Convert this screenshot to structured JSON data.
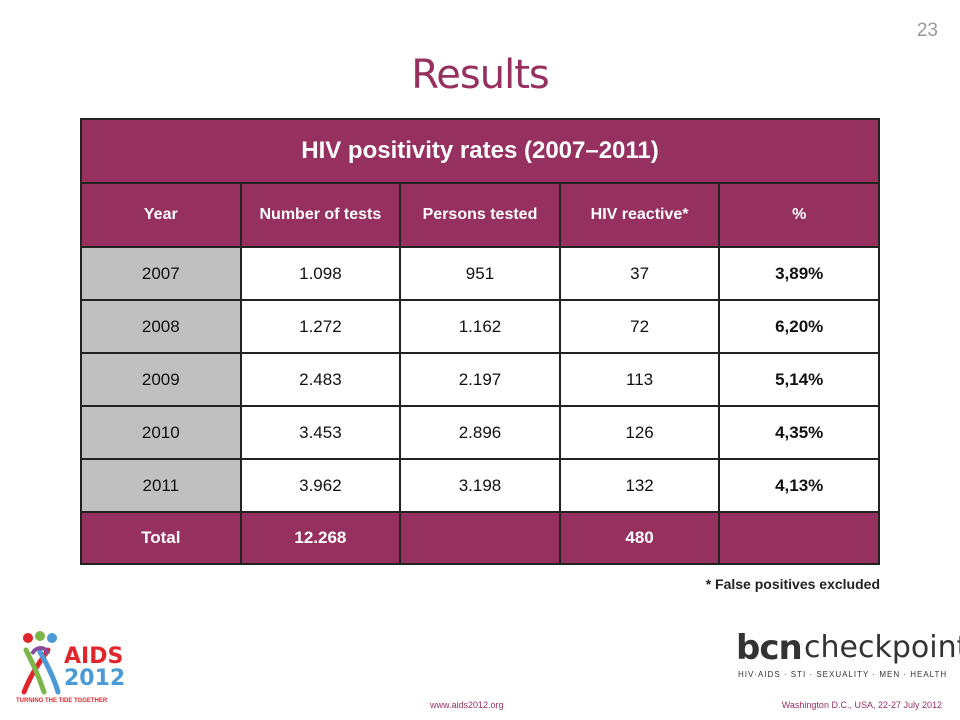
{
  "slide": {
    "number": "23",
    "title": "Results"
  },
  "table": {
    "title": "HIV positivity rates (2007–2011)",
    "columns": [
      "Year",
      "Number of tests",
      "Persons tested",
      "HIV reactive*",
      "%"
    ],
    "rows": [
      [
        "2007",
        "1.098",
        "951",
        "37",
        "3,89%"
      ],
      [
        "2008",
        "1.272",
        "1.162",
        "72",
        "6,20%"
      ],
      [
        "2009",
        "2.483",
        "2.197",
        "113",
        "5,14%"
      ],
      [
        "2010",
        "3.453",
        "2.896",
        "126",
        "4,35%"
      ],
      [
        "2011",
        "3.962",
        "3.198",
        "132",
        "4,13%"
      ]
    ],
    "total": [
      "Total",
      "12.268",
      "",
      "480",
      ""
    ]
  },
  "footnote": "* False positives excluded",
  "footer": {
    "url": "www.aids2012.org",
    "event": "Washington D.C., USA, 22-27 July 2012"
  },
  "logos": {
    "aids": {
      "line1": "AIDS",
      "line2": "2012",
      "tagline": "TURNING THE TIDE TOGETHER",
      "colors": {
        "red": "#e0262b",
        "blue": "#4b9ad6",
        "green": "#7ab648",
        "purple": "#8a4a9a"
      }
    },
    "bcn": {
      "brand": "bcn",
      "name": "checkpoint",
      "tagline": "HIV·AIDS · STI · SEXUALITY · MEN · HEALTH"
    }
  },
  "colors": {
    "accent": "#96305f",
    "year_cell": "#c0c0c0"
  }
}
